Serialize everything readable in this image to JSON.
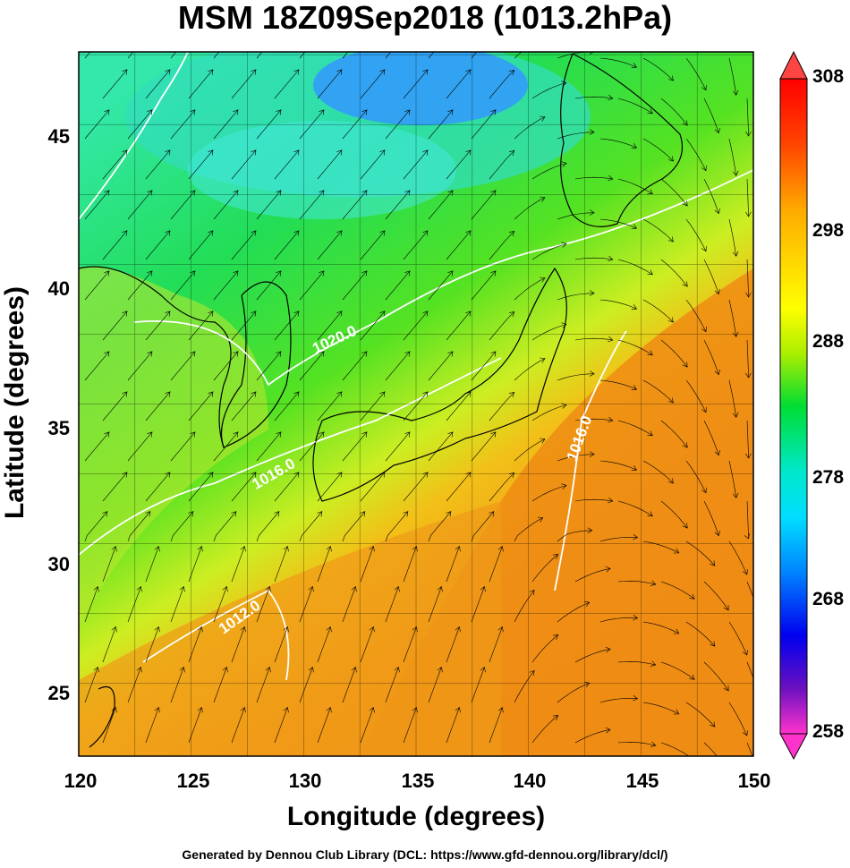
{
  "title": "MSM 18Z09Sep2018 (1013.2hPa)",
  "footer": "Generated by Dennou Club Library (DCL: https://www.gfd-dennou.org/library/dcl/)",
  "axes": {
    "xlabel": "Longitude (degrees)",
    "ylabel": "Latitude  (degrees)",
    "xticks": [
      "120",
      "125",
      "130",
      "135",
      "140",
      "145",
      "150"
    ],
    "yticks": [
      "25",
      "30",
      "35",
      "40",
      "45"
    ],
    "xrange": [
      120,
      150
    ],
    "yrange": [
      22.4,
      47.6
    ]
  },
  "colorbar": {
    "ticks": [
      "308",
      "298",
      "288",
      "278",
      "268",
      "258"
    ],
    "range": [
      258,
      308
    ],
    "colors": [
      "#ff33cc",
      "#6a00c0",
      "#0000ff",
      "#0088ff",
      "#00e0ff",
      "#00dd33",
      "#88ee00",
      "#ffff00",
      "#ffaa00",
      "#ff6600",
      "#ff0000"
    ]
  },
  "contours": [
    {
      "label": "1020.0"
    },
    {
      "label": "1016.0"
    },
    {
      "label": "1016.0"
    },
    {
      "label": "1012.0"
    }
  ]
}
